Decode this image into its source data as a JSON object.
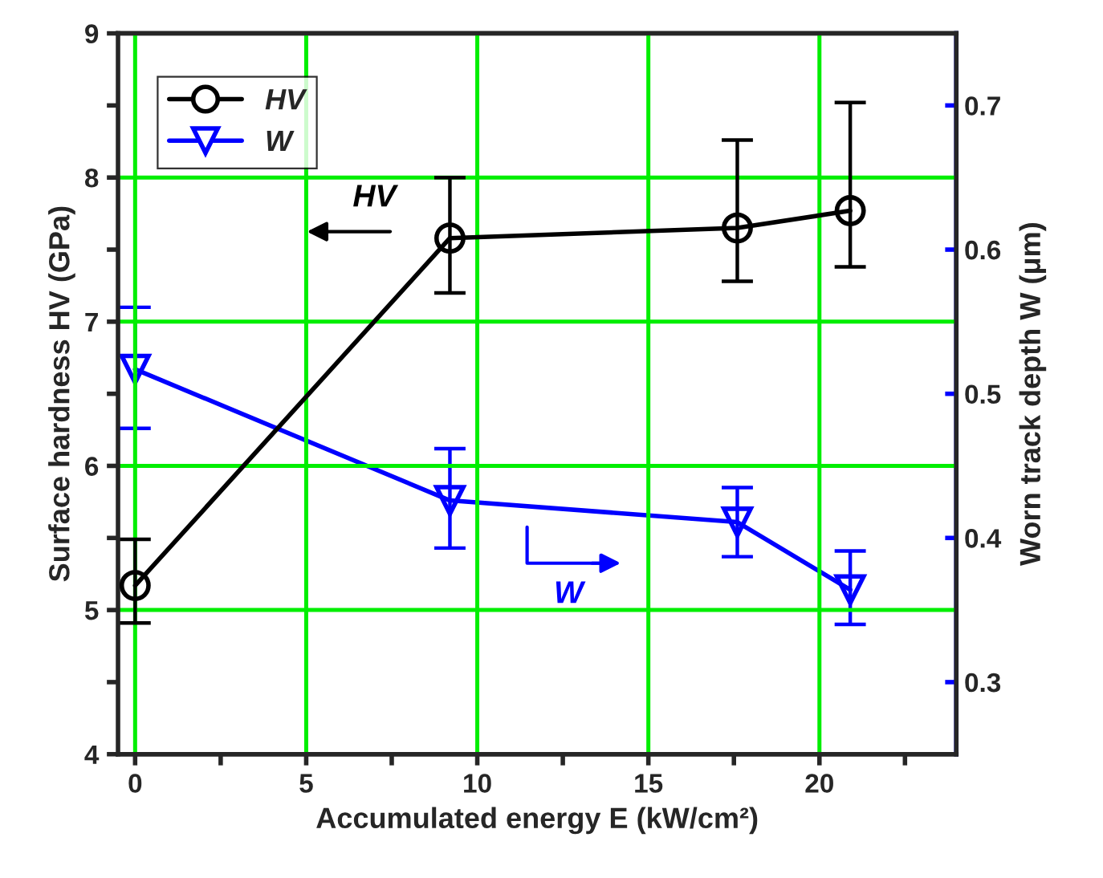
{
  "chart_data": {
    "type": "line",
    "xlabel": "Accumulated energy E (kW/cm²)",
    "ylabel": "Surface hardness HV (GPa)",
    "y2label": "Worn track depth W (μm)",
    "series": [
      {
        "name": "HV",
        "color": "#000000",
        "marker": "circle",
        "x": [
          0,
          9.2,
          17.6,
          20.9
        ],
        "values": [
          5.17,
          7.58,
          7.65,
          7.77
        ],
        "errors": [
          [
            4.91,
            5.49
          ],
          [
            7.2,
            8.0
          ],
          [
            7.28,
            8.26
          ],
          [
            7.38,
            8.52
          ]
        ]
      },
      {
        "name": "W",
        "color": "#0000ff",
        "marker": "triangle",
        "axis": "y2",
        "x": [
          0,
          9.2,
          17.6,
          20.9
        ],
        "values": [
          0.517,
          0.426,
          0.411,
          0.364
        ],
        "errors": [
          [
            0.476,
            0.56
          ],
          [
            0.393,
            0.462
          ],
          [
            0.387,
            0.435
          ],
          [
            0.34,
            0.391
          ]
        ]
      }
    ],
    "xlim": [
      -0.5,
      24
    ],
    "xticks": [
      0,
      5,
      10,
      15,
      20,
      {
        "value": 2.5,
        "label": null
      },
      {
        "value": 7.5,
        "label": null
      },
      {
        "value": 12.5,
        "label": null
      },
      {
        "value": 17.5,
        "label": null
      },
      {
        "value": 22.5,
        "label": null
      }
    ],
    "ylim": [
      4,
      9
    ],
    "yticks": [
      4,
      5,
      6,
      7,
      8,
      9,
      {
        "value": 4.5,
        "label": null
      },
      {
        "value": 5.5,
        "label": null
      },
      {
        "value": 6.5,
        "label": null
      },
      {
        "value": 7.5,
        "label": null
      },
      {
        "value": 8.5,
        "label": null
      }
    ],
    "y2lim": [
      0.25,
      0.75
    ],
    "y2ticks": [
      0.3,
      0.4,
      0.5,
      0.6,
      0.7
    ],
    "grid": true,
    "legend": "top left",
    "annotations": [
      "HV",
      "W"
    ]
  }
}
